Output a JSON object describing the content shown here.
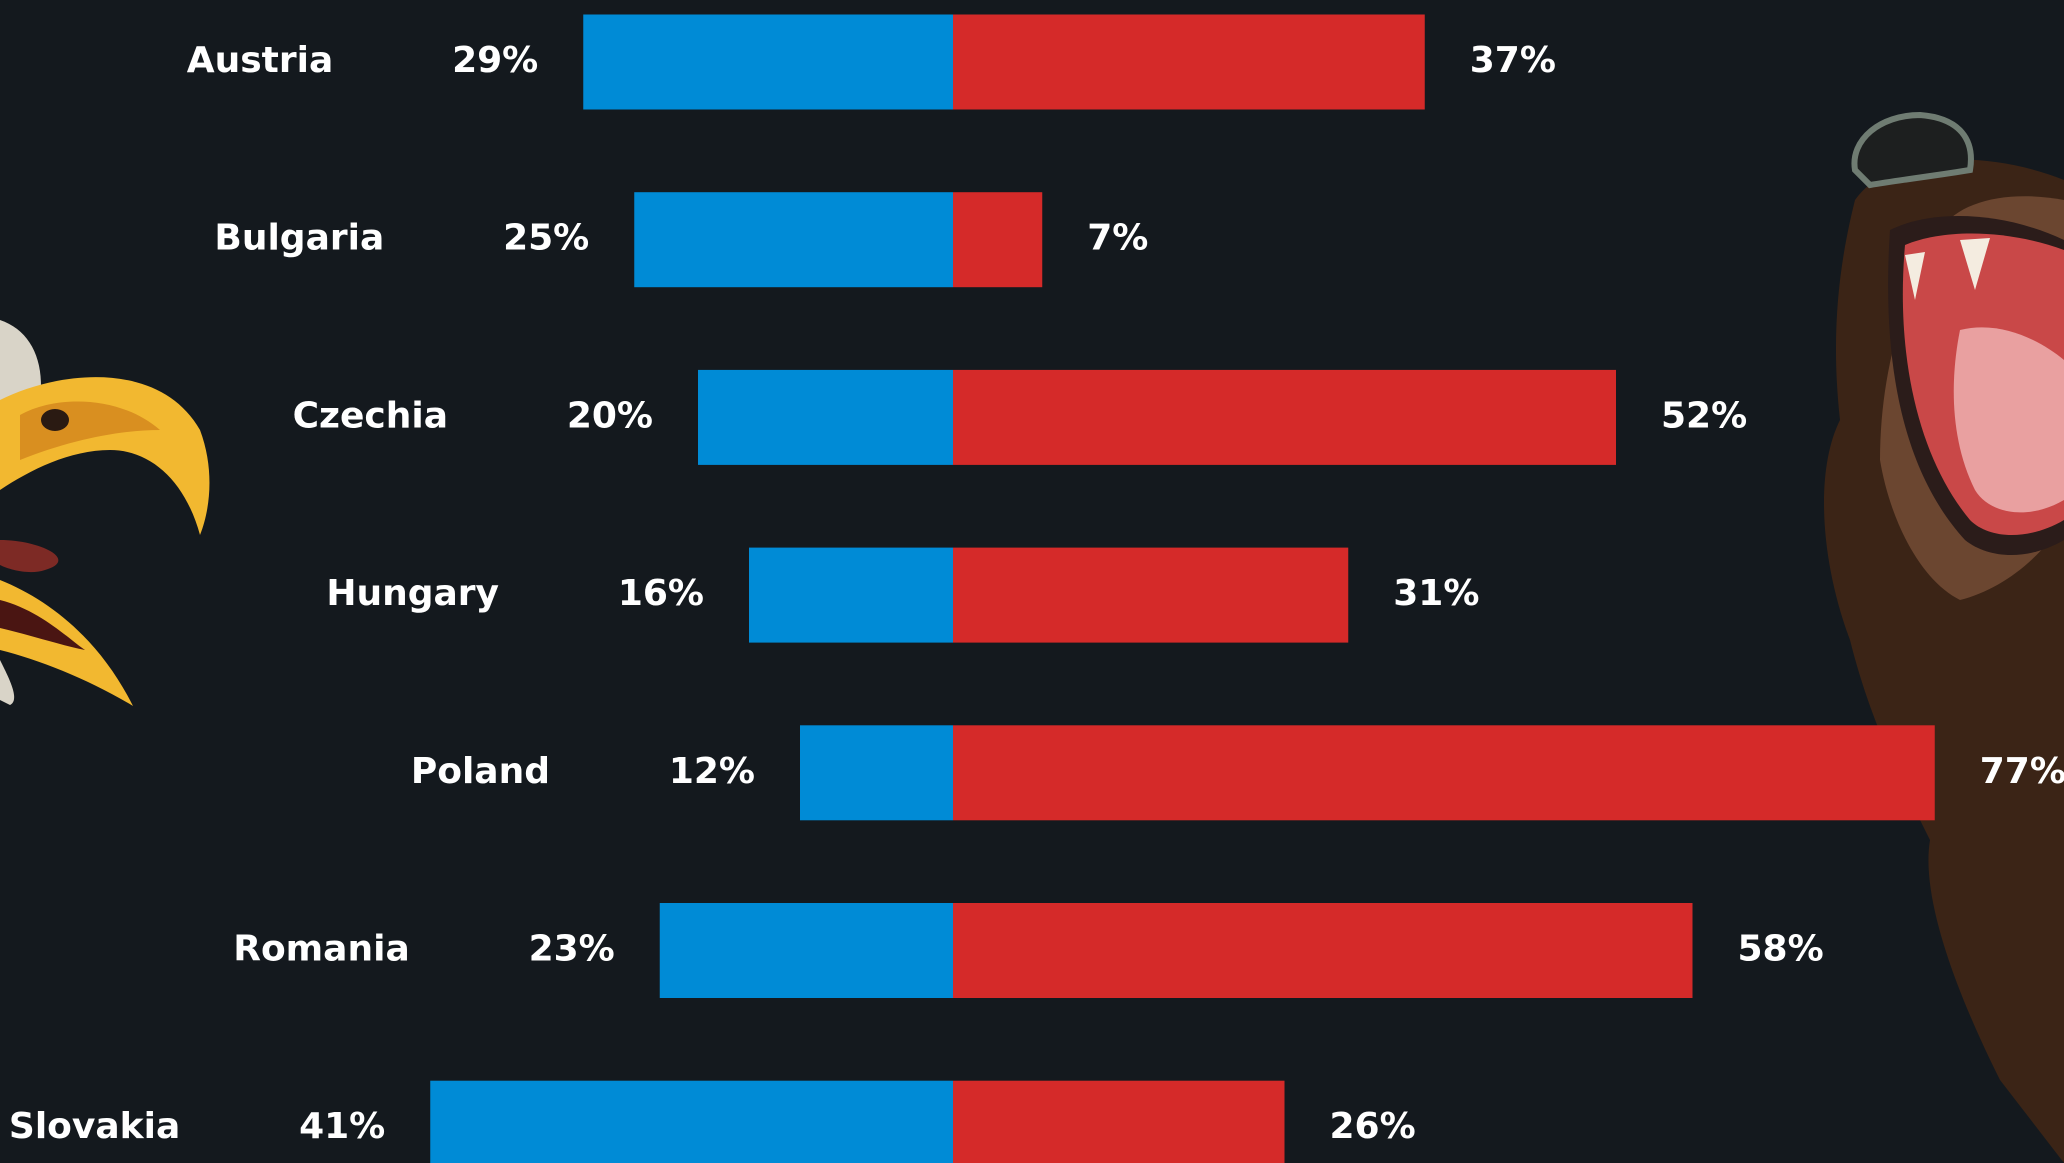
{
  "chart_data": {
    "type": "diverging-bar",
    "categories": [
      "Austria",
      "Bulgaria",
      "Czechia",
      "Hungary",
      "Poland",
      "Romania",
      "Slovakia"
    ],
    "series": [
      {
        "color": "#008bd6",
        "values": [
          29,
          25,
          20,
          16,
          12,
          23,
          41
        ],
        "value_labels": [
          "29%",
          "25%",
          "20%",
          "16%",
          "12%",
          "23%",
          "41%"
        ]
      },
      {
        "color": "#d52a29",
        "values": [
          37,
          7,
          52,
          31,
          77,
          58,
          26
        ],
        "value_labels": [
          "37%",
          "7%",
          "52%",
          "31%",
          "77%",
          "58%",
          "26%"
        ]
      }
    ]
  }
}
